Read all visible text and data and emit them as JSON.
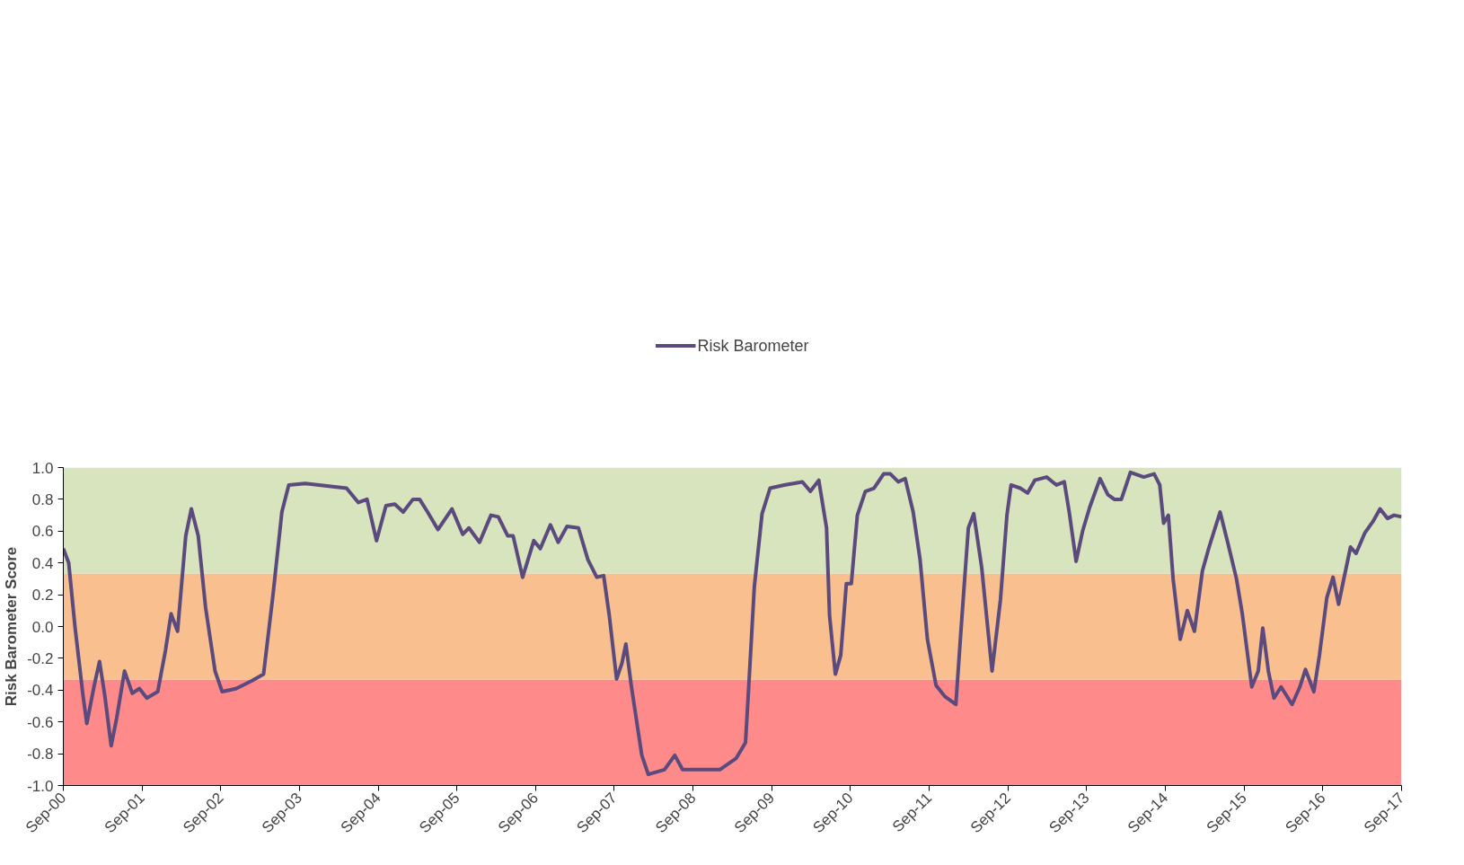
{
  "chart_data": {
    "type": "line",
    "ylabel": "Risk Barometer Score",
    "legend": "top",
    "grid": false,
    "line_style": "solid",
    "marker": "none",
    "xlim": [
      "2000-09-01",
      "2017-09-01"
    ],
    "xticks": [
      {
        "value": "2000-09-01",
        "label": "Sep-00"
      },
      {
        "value": "2001-09-01",
        "label": "Sep-01"
      },
      {
        "value": "2002-09-01",
        "label": "Sep-02"
      },
      {
        "value": "2003-09-01",
        "label": "Sep-03"
      },
      {
        "value": "2004-09-01",
        "label": "Sep-04"
      },
      {
        "value": "2005-09-01",
        "label": "Sep-05"
      },
      {
        "value": "2006-09-01",
        "label": "Sep-06"
      },
      {
        "value": "2007-09-01",
        "label": "Sep-07"
      },
      {
        "value": "2008-09-01",
        "label": "Sep-08"
      },
      {
        "value": "2009-09-01",
        "label": "Sep-09"
      },
      {
        "value": "2010-09-01",
        "label": "Sep-10"
      },
      {
        "value": "2011-09-01",
        "label": "Sep-11"
      },
      {
        "value": "2012-09-01",
        "label": "Sep-12"
      },
      {
        "value": "2013-09-01",
        "label": "Sep-13"
      },
      {
        "value": "2014-09-01",
        "label": "Sep-14"
      },
      {
        "value": "2015-09-01",
        "label": "Sep-15"
      },
      {
        "value": "2016-09-01",
        "label": "Sep-16"
      },
      {
        "value": "2017-09-01",
        "label": "Sep-17"
      }
    ],
    "ylim": [
      -1,
      1
    ],
    "yticks": [
      {
        "value": -1,
        "label": "-1.0"
      },
      {
        "value": -0.8,
        "label": "-0.8"
      },
      {
        "value": -0.6,
        "label": "-0.6"
      },
      {
        "value": -0.4,
        "label": "-0.4"
      },
      {
        "value": -0.2,
        "label": "-0.2"
      },
      {
        "value": 0,
        "label": "0.0"
      },
      {
        "value": 0.2,
        "label": "0.2"
      },
      {
        "value": 0.4,
        "label": "0.4"
      },
      {
        "value": 0.6,
        "label": "0.6"
      },
      {
        "value": 0.8,
        "label": "0.8"
      },
      {
        "value": 1,
        "label": "1.0"
      }
    ],
    "bands": [
      {
        "axis": "y",
        "from": -1,
        "to": -0.333,
        "label": null,
        "color": "#ff8a8a"
      },
      {
        "axis": "y",
        "from": -0.333,
        "to": 0.333,
        "label": null,
        "color": "#f9bf8f"
      },
      {
        "axis": "y",
        "from": 0.333,
        "to": 1,
        "label": null,
        "color": "#d7e4bd"
      }
    ],
    "series": [
      {
        "name": "Risk Barometer",
        "color": "#5b4a7d",
        "x": [
          "2000-09-01",
          "2000-09-26",
          "2000-10-25",
          "2000-12-01",
          "2000-12-19",
          "2001-01-21",
          "2001-02-16",
          "2001-03-12",
          "2001-04-11",
          "2001-05-06",
          "2001-06-12",
          "2001-07-18",
          "2001-08-20",
          "2001-09-23",
          "2001-11-13",
          "2001-12-19",
          "2002-01-14",
          "2002-02-13",
          "2002-03-23",
          "2002-04-18",
          "2002-05-20",
          "2002-06-23",
          "2002-08-06",
          "2002-09-08",
          "2002-11-13",
          "2003-01-25",
          "2003-03-19",
          "2003-05-02",
          "2003-06-12",
          "2003-07-14",
          "2003-09-28",
          "2004-04-07",
          "2004-06-01",
          "2004-07-11",
          "2004-08-24",
          "2004-10-07",
          "2004-11-17",
          "2004-12-26",
          "2005-02-09",
          "2005-03-12",
          "2005-04-18",
          "2005-06-05",
          "2005-08-09",
          "2005-09-28",
          "2005-10-27",
          "2005-12-15",
          "2006-02-06",
          "2006-03-12",
          "2006-04-25",
          "2006-05-20",
          "2006-07-03",
          "2006-08-24",
          "2006-09-23",
          "2006-11-09",
          "2006-12-15",
          "2007-01-25",
          "2007-03-19",
          "2007-05-02",
          "2007-06-12",
          "2007-07-14",
          "2007-08-09",
          "2007-09-12",
          "2007-10-07",
          "2007-10-25",
          "2007-11-20",
          "2008-01-07",
          "2008-02-06",
          "2008-04-21",
          "2008-06-08",
          "2008-07-14",
          "2009-01-03",
          "2009-03-19",
          "2009-05-02",
          "2009-05-17",
          "2009-06-12",
          "2009-07-18",
          "2009-08-24",
          "2009-10-29",
          "2010-01-21",
          "2010-02-27",
          "2010-04-07",
          "2010-05-13",
          "2010-05-27",
          "2010-06-23",
          "2010-07-18",
          "2010-08-13",
          "2010-09-05",
          "2010-10-03",
          "2010-11-09",
          "2010-12-19",
          "2011-02-02",
          "2011-03-05",
          "2011-04-11",
          "2011-05-13",
          "2011-06-19",
          "2011-07-21",
          "2011-08-24",
          "2011-10-03",
          "2011-11-13",
          "2012-01-03",
          "2012-01-28",
          "2012-03-01",
          "2012-03-26",
          "2012-05-02",
          "2012-06-19",
          "2012-07-28",
          "2012-08-27",
          "2012-09-15",
          "2012-10-28",
          "2012-12-01",
          "2013-01-03",
          "2013-02-27",
          "2013-04-14",
          "2013-05-20",
          "2013-06-12",
          "2013-07-14",
          "2013-08-13",
          "2013-09-15",
          "2013-11-02",
          "2013-12-08",
          "2014-01-07",
          "2014-02-09",
          "2014-03-23",
          "2014-05-24",
          "2014-07-11",
          "2014-08-06",
          "2014-08-24",
          "2014-09-15",
          "2014-10-07",
          "2014-11-09",
          "2014-12-12",
          "2015-01-14",
          "2015-02-20",
          "2015-03-23",
          "2015-05-13",
          "2015-06-19",
          "2015-07-28",
          "2015-08-24",
          "2015-10-07",
          "2015-11-06",
          "2015-11-27",
          "2015-12-23",
          "2016-01-18",
          "2016-02-20",
          "2016-04-11",
          "2016-05-17",
          "2016-06-12",
          "2016-07-21",
          "2016-08-16",
          "2016-09-19",
          "2016-10-18",
          "2016-11-13",
          "2016-12-01",
          "2017-01-07",
          "2017-02-02",
          "2017-03-15",
          "2017-04-21",
          "2017-05-24",
          "2017-06-28",
          "2017-07-28",
          "2017-09-01"
        ],
        "values": [
          0.49,
          0.4,
          0.0,
          -0.43,
          -0.61,
          -0.38,
          -0.22,
          -0.43,
          -0.75,
          -0.58,
          -0.28,
          -0.42,
          -0.39,
          -0.45,
          -0.41,
          -0.15,
          0.08,
          -0.03,
          0.57,
          0.74,
          0.57,
          0.12,
          -0.28,
          -0.41,
          -0.39,
          -0.34,
          -0.3,
          0.2,
          0.72,
          0.89,
          0.9,
          0.87,
          0.78,
          0.8,
          0.54,
          0.76,
          0.77,
          0.72,
          0.8,
          0.8,
          0.72,
          0.61,
          0.74,
          0.58,
          0.62,
          0.53,
          0.7,
          0.69,
          0.57,
          0.57,
          0.31,
          0.54,
          0.49,
          0.64,
          0.53,
          0.63,
          0.62,
          0.42,
          0.31,
          0.32,
          0.07,
          -0.33,
          -0.23,
          -0.11,
          -0.38,
          -0.81,
          -0.93,
          -0.9,
          -0.81,
          -0.9,
          -0.9,
          -0.83,
          -0.73,
          -0.38,
          0.25,
          0.71,
          0.87,
          0.89,
          0.91,
          0.85,
          0.92,
          0.62,
          0.07,
          -0.3,
          -0.18,
          0.27,
          0.27,
          0.7,
          0.85,
          0.87,
          0.96,
          0.96,
          0.91,
          0.93,
          0.72,
          0.42,
          -0.08,
          -0.37,
          -0.44,
          -0.49,
          0.0,
          0.62,
          0.71,
          0.37,
          -0.28,
          0.17,
          0.7,
          0.89,
          0.87,
          0.84,
          0.92,
          0.94,
          0.89,
          0.91,
          0.72,
          0.41,
          0.6,
          0.75,
          0.93,
          0.83,
          0.8,
          0.8,
          0.97,
          0.94,
          0.96,
          0.89,
          0.65,
          0.7,
          0.3,
          -0.08,
          0.1,
          -0.03,
          0.35,
          0.5,
          0.72,
          0.52,
          0.3,
          0.08,
          -0.38,
          -0.28,
          -0.01,
          -0.28,
          -0.45,
          -0.38,
          -0.49,
          -0.38,
          -0.27,
          -0.41,
          -0.18,
          0.18,
          0.31,
          0.14,
          0.26,
          0.5,
          0.46,
          0.59,
          0.66,
          0.74,
          0.68,
          0.7,
          0.69
        ]
      }
    ]
  }
}
